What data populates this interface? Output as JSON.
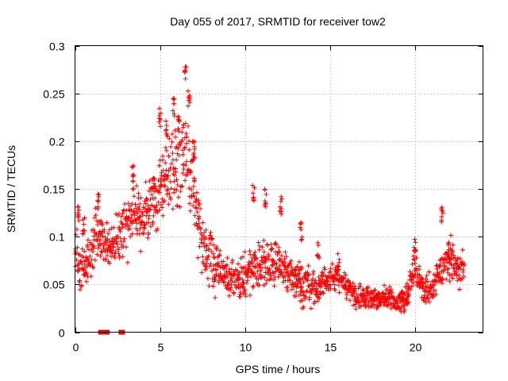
{
  "chart_data": {
    "type": "scatter",
    "title": "Day 055 of 2017, SRMTID for receiver tow2",
    "xlabel": "GPS time / hours",
    "ylabel": "SRMTID / TECUs",
    "xlim": [
      0,
      24
    ],
    "ylim": [
      0,
      0.3
    ],
    "x_ticks": [
      0,
      5,
      10,
      15,
      20
    ],
    "x_tick_labels": [
      "0",
      "5",
      "10",
      "15",
      "20"
    ],
    "y_ticks": [
      0,
      0.05,
      0.1,
      0.15,
      0.2,
      0.25,
      0.3
    ],
    "y_tick_labels": [
      "0",
      "0.05",
      "0.1",
      "0.15",
      "0.2",
      "0.25",
      "0.3"
    ],
    "grid": true,
    "marker": "+",
    "marker_color": "#ff0000",
    "series": [
      {
        "name": "SRMTID",
        "trend": [
          [
            0,
            0.08
          ],
          [
            0.5,
            0.065
          ],
          [
            1,
            0.085
          ],
          [
            1.5,
            0.1
          ],
          [
            2,
            0.09
          ],
          [
            2.5,
            0.1
          ],
          [
            3,
            0.115
          ],
          [
            3.5,
            0.125
          ],
          [
            4,
            0.12
          ],
          [
            4.5,
            0.135
          ],
          [
            5,
            0.15
          ],
          [
            5.5,
            0.165
          ],
          [
            6,
            0.175
          ],
          [
            6.5,
            0.185
          ],
          [
            7,
            0.15
          ],
          [
            7.5,
            0.085
          ],
          [
            8,
            0.075
          ],
          [
            8.5,
            0.065
          ],
          [
            9,
            0.06
          ],
          [
            9.5,
            0.055
          ],
          [
            10,
            0.06
          ],
          [
            10.5,
            0.07
          ],
          [
            11,
            0.075
          ],
          [
            11.5,
            0.07
          ],
          [
            12,
            0.075
          ],
          [
            12.5,
            0.06
          ],
          [
            13,
            0.055
          ],
          [
            13.5,
            0.05
          ],
          [
            14,
            0.045
          ],
          [
            14.5,
            0.05
          ],
          [
            15,
            0.055
          ],
          [
            15.5,
            0.055
          ],
          [
            16,
            0.05
          ],
          [
            16.5,
            0.035
          ],
          [
            17,
            0.035
          ],
          [
            17.5,
            0.035
          ],
          [
            18,
            0.035
          ],
          [
            18.5,
            0.035
          ],
          [
            19,
            0.03
          ],
          [
            19.5,
            0.035
          ],
          [
            20,
            0.07
          ],
          [
            20.5,
            0.045
          ],
          [
            21,
            0.045
          ],
          [
            21.5,
            0.065
          ],
          [
            22,
            0.08
          ],
          [
            22.5,
            0.065
          ],
          [
            22.9,
            0.07
          ]
        ],
        "spread": [
          [
            0,
            0.025
          ],
          [
            2,
            0.025
          ],
          [
            3.5,
            0.03
          ],
          [
            5,
            0.04
          ],
          [
            6.5,
            0.05
          ],
          [
            7.5,
            0.03
          ],
          [
            9,
            0.02
          ],
          [
            11,
            0.025
          ],
          [
            13,
            0.02
          ],
          [
            15,
            0.015
          ],
          [
            16.5,
            0.012
          ],
          [
            19,
            0.01
          ],
          [
            20,
            0.018
          ],
          [
            21,
            0.012
          ],
          [
            22,
            0.02
          ],
          [
            23,
            0.015
          ]
        ],
        "peaks": [
          [
            0.2,
            0.135
          ],
          [
            0.5,
            0.12
          ],
          [
            1.4,
            0.145
          ],
          [
            3.4,
            0.175
          ],
          [
            4.6,
            0.165
          ],
          [
            5.0,
            0.235
          ],
          [
            5.4,
            0.225
          ],
          [
            5.8,
            0.245
          ],
          [
            6.1,
            0.23
          ],
          [
            6.5,
            0.285
          ],
          [
            6.7,
            0.255
          ],
          [
            7.0,
            0.2
          ],
          [
            10.5,
            0.155
          ],
          [
            11.2,
            0.15
          ],
          [
            12.1,
            0.143
          ],
          [
            13.3,
            0.115
          ],
          [
            14.3,
            0.095
          ],
          [
            15.5,
            0.085
          ],
          [
            20.0,
            0.1
          ],
          [
            21.6,
            0.135
          ],
          [
            22.0,
            0.095
          ]
        ],
        "zero_values_x": [
          1.5,
          1.6,
          1.7,
          1.8,
          1.9,
          2.7,
          2.75,
          2.8
        ]
      }
    ]
  }
}
